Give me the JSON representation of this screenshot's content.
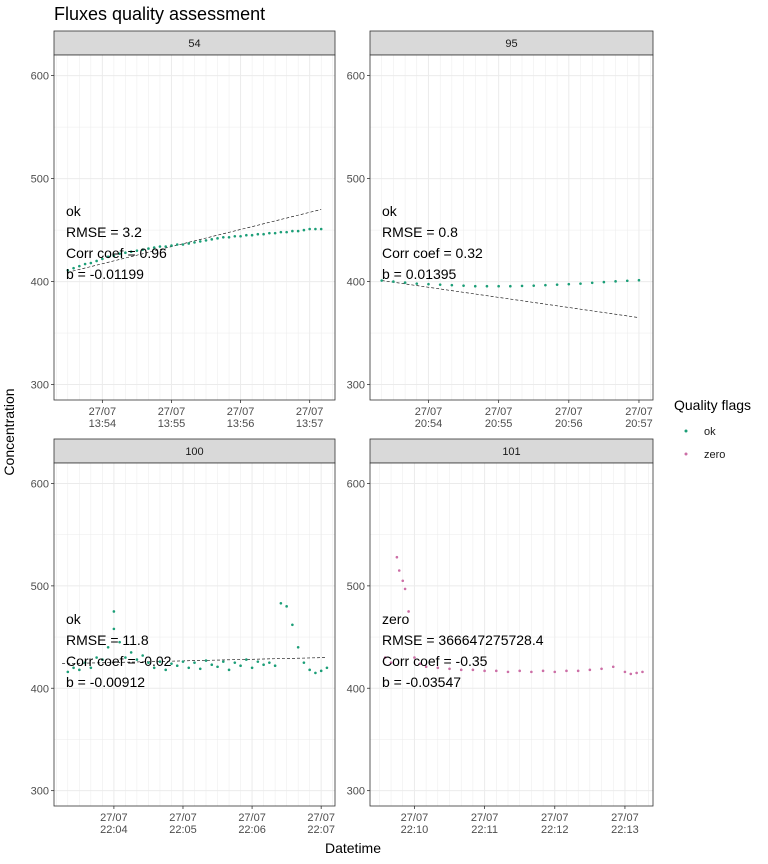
{
  "colors": {
    "ok": "#1b9e77",
    "zero": "#cc6ea6",
    "strip": "#d9d9d9",
    "grid": "#ebebeb",
    "frame": "#333333"
  },
  "chart_data": {
    "type": "scatter",
    "title": "Fluxes quality assessment",
    "xlabel": "Datetime",
    "ylabel": "Concentration",
    "ylim": [
      285,
      620
    ],
    "yticks": [
      300,
      400,
      500,
      600
    ],
    "grid": true,
    "legend": {
      "title": "Quality flags",
      "position": "right",
      "entries": [
        {
          "label": "ok",
          "color": "#1b9e77"
        },
        {
          "label": "zero",
          "color": "#cc6ea6"
        }
      ]
    },
    "panels": [
      {
        "strip": "54",
        "flag": "ok",
        "annotations": [
          "ok",
          "RMSE = 3.2",
          "Corr coef = 0.96",
          "b = -0.01199"
        ],
        "xlim": [
          "13:53:18",
          "13:57:22"
        ],
        "xticks": [
          "13:54",
          "13:55",
          "13:56",
          "13:57"
        ],
        "xtick_date": "27/07",
        "points": [
          [
            "13:53:30",
            411
          ],
          [
            "13:53:35",
            413
          ],
          [
            "13:53:40",
            415
          ],
          [
            "13:53:45",
            417
          ],
          [
            "13:53:50",
            418
          ],
          [
            "13:53:55",
            420
          ],
          [
            "13:54:00",
            422
          ],
          [
            "13:54:05",
            424
          ],
          [
            "13:54:10",
            425
          ],
          [
            "13:54:15",
            427
          ],
          [
            "13:54:20",
            428
          ],
          [
            "13:54:25",
            429
          ],
          [
            "13:54:30",
            430
          ],
          [
            "13:54:35",
            431
          ],
          [
            "13:54:40",
            432
          ],
          [
            "13:54:45",
            433
          ],
          [
            "13:54:50",
            434
          ],
          [
            "13:54:55",
            434
          ],
          [
            "13:55:00",
            435
          ],
          [
            "13:55:05",
            436
          ],
          [
            "13:55:10",
            436
          ],
          [
            "13:55:15",
            437
          ],
          [
            "13:55:20",
            438
          ],
          [
            "13:55:25",
            439
          ],
          [
            "13:55:30",
            440
          ],
          [
            "13:55:35",
            441
          ],
          [
            "13:55:40",
            442
          ],
          [
            "13:55:45",
            443
          ],
          [
            "13:55:50",
            443
          ],
          [
            "13:55:55",
            444
          ],
          [
            "13:56:00",
            444
          ],
          [
            "13:56:05",
            445
          ],
          [
            "13:56:10",
            445
          ],
          [
            "13:56:15",
            446
          ],
          [
            "13:56:20",
            446
          ],
          [
            "13:56:25",
            447
          ],
          [
            "13:56:30",
            447
          ],
          [
            "13:56:35",
            448
          ],
          [
            "13:56:40",
            448
          ],
          [
            "13:56:45",
            449
          ],
          [
            "13:56:50",
            449
          ],
          [
            "13:56:55",
            450
          ],
          [
            "13:57:00",
            451
          ],
          [
            "13:57:05",
            451
          ],
          [
            "13:57:10",
            451
          ]
        ],
        "fit_line": [
          [
            "13:53:30",
            409
          ],
          [
            "13:57:10",
            470
          ]
        ]
      },
      {
        "strip": "95",
        "flag": "ok",
        "annotations": [
          "ok",
          "RMSE = 0.8",
          "Corr coef = 0.32",
          "b = 0.01395"
        ],
        "xlim": [
          "20:53:10",
          "20:57:12"
        ],
        "xticks": [
          "20:54",
          "20:55",
          "20:56",
          "20:57"
        ],
        "xtick_date": "27/07",
        "points": [
          [
            "20:53:20",
            401
          ],
          [
            "20:53:30",
            400
          ],
          [
            "20:53:40",
            399
          ],
          [
            "20:53:50",
            398
          ],
          [
            "20:54:00",
            397.5
          ],
          [
            "20:54:10",
            397
          ],
          [
            "20:54:20",
            396.5
          ],
          [
            "20:54:30",
            396
          ],
          [
            "20:54:40",
            395.5
          ],
          [
            "20:54:50",
            395.5
          ],
          [
            "20:55:00",
            395.5
          ],
          [
            "20:55:10",
            395.5
          ],
          [
            "20:55:20",
            395.8
          ],
          [
            "20:55:30",
            396
          ],
          [
            "20:55:40",
            396.5
          ],
          [
            "20:55:50",
            397
          ],
          [
            "20:56:00",
            397.5
          ],
          [
            "20:56:10",
            398
          ],
          [
            "20:56:20",
            398.8
          ],
          [
            "20:56:30",
            399.5
          ],
          [
            "20:56:40",
            400.2
          ],
          [
            "20:56:50",
            400.8
          ],
          [
            "20:57:00",
            401.3
          ]
        ],
        "fit_line": [
          [
            "20:53:20",
            401
          ],
          [
            "20:57:00",
            365
          ]
        ]
      },
      {
        "strip": "100",
        "flag": "ok",
        "annotations": [
          "ok",
          "RMSE = 11.8",
          "Corr coef = -0.02",
          "b = -0.00912"
        ],
        "xlim": [
          "22:03:08",
          "22:07:12"
        ],
        "xticks": [
          "22:04",
          "22:05",
          "22:06",
          "22:07"
        ],
        "xtick_date": "27/07",
        "points": [
          [
            "22:03:20",
            416
          ],
          [
            "22:03:25",
            420
          ],
          [
            "22:03:30",
            418
          ],
          [
            "22:03:35",
            425
          ],
          [
            "22:03:40",
            420
          ],
          [
            "22:03:45",
            430
          ],
          [
            "22:03:50",
            428
          ],
          [
            "22:03:55",
            440
          ],
          [
            "22:04:00",
            475
          ],
          [
            "22:04:00",
            458
          ],
          [
            "22:04:05",
            445
          ],
          [
            "22:04:10",
            430
          ],
          [
            "22:04:15",
            435
          ],
          [
            "22:04:20",
            428
          ],
          [
            "22:04:25",
            432
          ],
          [
            "22:04:30",
            425
          ],
          [
            "22:04:35",
            420
          ],
          [
            "22:04:40",
            426
          ],
          [
            "22:04:45",
            418
          ],
          [
            "22:04:50",
            424
          ],
          [
            "22:04:55",
            422
          ],
          [
            "22:05:00",
            426
          ],
          [
            "22:05:05",
            420
          ],
          [
            "22:05:10",
            425
          ],
          [
            "22:05:15",
            419
          ],
          [
            "22:05:20",
            427
          ],
          [
            "22:05:25",
            423
          ],
          [
            "22:05:30",
            421
          ],
          [
            "22:05:35",
            426
          ],
          [
            "22:05:40",
            418
          ],
          [
            "22:05:45",
            425
          ],
          [
            "22:05:50",
            422
          ],
          [
            "22:05:55",
            428
          ],
          [
            "22:06:00",
            420
          ],
          [
            "22:06:05",
            426
          ],
          [
            "22:06:10",
            423
          ],
          [
            "22:06:15",
            425
          ],
          [
            "22:06:20",
            422
          ],
          [
            "22:06:25",
            483
          ],
          [
            "22:06:30",
            480
          ],
          [
            "22:06:35",
            462
          ],
          [
            "22:06:40",
            440
          ],
          [
            "22:06:45",
            425
          ],
          [
            "22:06:50",
            418
          ],
          [
            "22:06:55",
            415
          ],
          [
            "22:07:00",
            417
          ],
          [
            "22:07:05",
            420
          ]
        ],
        "fit_line": [
          [
            "22:03:15",
            424
          ],
          [
            "22:07:05",
            430
          ]
        ]
      },
      {
        "strip": "101",
        "flag": "zero",
        "annotations": [
          "zero",
          "RMSE = 366647275728.4",
          "Corr coef = -0.35",
          "b = -0.03547"
        ],
        "xlim": [
          "22:09:22",
          "22:13:24"
        ],
        "xticks": [
          "22:10",
          "22:11",
          "22:12",
          "22:13"
        ],
        "xtick_date": "27/07",
        "points": [
          [
            "22:09:35",
            430
          ],
          [
            "22:09:40",
            425
          ],
          [
            "22:09:45",
            528
          ],
          [
            "22:09:47",
            515
          ],
          [
            "22:09:50",
            505
          ],
          [
            "22:09:52",
            497
          ],
          [
            "22:09:55",
            475
          ],
          [
            "22:10:00",
            430
          ],
          [
            "22:10:05",
            424
          ],
          [
            "22:10:10",
            421
          ],
          [
            "22:10:20",
            420
          ],
          [
            "22:10:30",
            419
          ],
          [
            "22:10:40",
            418
          ],
          [
            "22:10:50",
            418
          ],
          [
            "22:11:00",
            417
          ],
          [
            "22:11:10",
            417
          ],
          [
            "22:11:20",
            416
          ],
          [
            "22:11:30",
            417
          ],
          [
            "22:11:40",
            416
          ],
          [
            "22:11:50",
            417
          ],
          [
            "22:12:00",
            416
          ],
          [
            "22:12:10",
            417
          ],
          [
            "22:12:20",
            417
          ],
          [
            "22:12:30",
            418
          ],
          [
            "22:12:40",
            419
          ],
          [
            "22:12:50",
            421
          ],
          [
            "22:13:00",
            416
          ],
          [
            "22:13:05",
            414
          ],
          [
            "22:13:10",
            415
          ],
          [
            "22:13:15",
            416
          ]
        ],
        "fit_line": null
      }
    ]
  }
}
